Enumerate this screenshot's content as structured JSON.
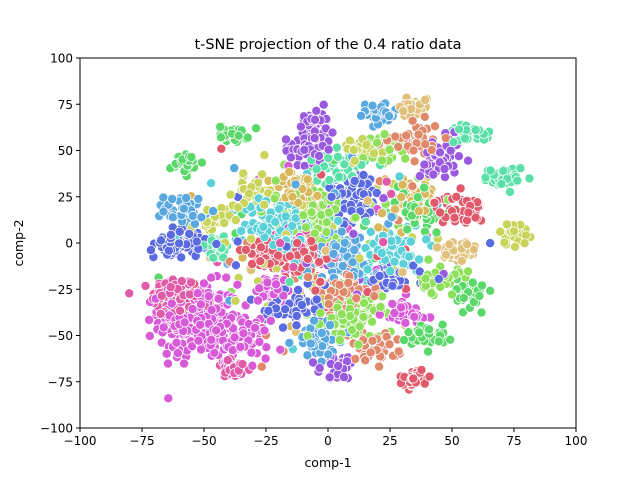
{
  "chart_data": {
    "type": "scatter",
    "title": "t-SNE projection of the 0.4 ratio data",
    "xlabel": "comp-1",
    "ylabel": "comp-2",
    "xlim": [
      -100,
      100
    ],
    "ylim": [
      -100,
      100
    ],
    "xticks": [
      -100,
      -75,
      -50,
      -25,
      0,
      25,
      50,
      75,
      100
    ],
    "yticks": [
      -100,
      -75,
      -50,
      -25,
      0,
      25,
      50,
      75,
      100
    ],
    "grid": false,
    "legend": "none",
    "marker_edge_color": "#ffffff",
    "marker_outline_color": "#1f77b4",
    "palette": [
      "#e05a6c",
      "#e0886a",
      "#d8b85a",
      "#c8d45a",
      "#8ee05a",
      "#5ad86a",
      "#5ae0a8",
      "#5ad0d8",
      "#5aa8e0",
      "#5a6ae0",
      "#9a5ae0",
      "#d85ad8",
      "#e05aa8",
      "#e0c07a"
    ],
    "clusters": [
      {
        "cx": -62,
        "cy": -30,
        "sx": 4.5,
        "sy": 6,
        "n": 110,
        "c": 12
      },
      {
        "cx": -52,
        "cy": -42,
        "sx": 8,
        "sy": 10,
        "n": 260,
        "c": 11
      },
      {
        "cx": -36,
        "cy": -52,
        "sx": 6,
        "sy": 5,
        "n": 80,
        "c": 11
      },
      {
        "cx": -38,
        "cy": -68,
        "sx": 3.5,
        "sy": 2.5,
        "n": 35,
        "c": 12
      },
      {
        "cx": -57,
        "cy": 43,
        "sx": 3.2,
        "sy": 2.5,
        "n": 35,
        "c": 5
      },
      {
        "cx": -38,
        "cy": 59,
        "sx": 3,
        "sy": 2.3,
        "n": 30,
        "c": 5
      },
      {
        "cx": -60,
        "cy": 0,
        "sx": 5,
        "sy": 4,
        "n": 70,
        "c": 9
      },
      {
        "cx": -58,
        "cy": 18,
        "sx": 4,
        "sy": 4,
        "n": 45,
        "c": 8
      },
      {
        "cx": -47,
        "cy": 12,
        "sx": 4,
        "sy": 4,
        "n": 40,
        "c": 3
      },
      {
        "cx": -45,
        "cy": -3,
        "sx": 4,
        "sy": 3,
        "n": 35,
        "c": 6
      },
      {
        "cx": -30,
        "cy": 28,
        "sx": 4,
        "sy": 4,
        "n": 45,
        "c": 3
      },
      {
        "cx": -20,
        "cy": 10,
        "sx": 7,
        "sy": 8,
        "n": 120,
        "c": 7
      },
      {
        "cx": -5,
        "cy": 15,
        "sx": 7,
        "sy": 8,
        "n": 110,
        "c": 4
      },
      {
        "cx": -12,
        "cy": 28,
        "sx": 6,
        "sy": 5,
        "n": 70,
        "c": 2
      },
      {
        "cx": 10,
        "cy": 25,
        "sx": 6,
        "sy": 7,
        "n": 90,
        "c": 9
      },
      {
        "cx": -8,
        "cy": 52,
        "sx": 5,
        "sy": 5,
        "n": 60,
        "c": 10
      },
      {
        "cx": 5,
        "cy": 40,
        "sx": 5,
        "sy": 5,
        "n": 50,
        "c": 6
      },
      {
        "cx": -5,
        "cy": 67,
        "sx": 3,
        "sy": 3,
        "n": 30,
        "c": 10
      },
      {
        "cx": 13,
        "cy": 49,
        "sx": 4,
        "sy": 3,
        "n": 35,
        "c": 3
      },
      {
        "cx": 22,
        "cy": 50,
        "sx": 4,
        "sy": 3.5,
        "n": 40,
        "c": 4
      },
      {
        "cx": 20,
        "cy": 70,
        "sx": 4,
        "sy": 3,
        "n": 40,
        "c": 8
      },
      {
        "cx": 35,
        "cy": 74,
        "sx": 3,
        "sy": 3,
        "n": 30,
        "c": 13
      },
      {
        "cx": 36,
        "cy": 55,
        "sx": 5,
        "sy": 5,
        "n": 55,
        "c": 1
      },
      {
        "cx": 45,
        "cy": 45,
        "sx": 4,
        "sy": 6,
        "n": 55,
        "c": 10
      },
      {
        "cx": 57,
        "cy": 60,
        "sx": 4,
        "sy": 2.5,
        "n": 40,
        "c": 6
      },
      {
        "cx": 71,
        "cy": 35,
        "sx": 4,
        "sy": 3,
        "n": 40,
        "c": 6
      },
      {
        "cx": 34,
        "cy": 25,
        "sx": 4,
        "sy": 4,
        "n": 45,
        "c": 2
      },
      {
        "cx": 35,
        "cy": 18,
        "sx": 6,
        "sy": 5,
        "n": 60,
        "c": 5
      },
      {
        "cx": 53,
        "cy": 18,
        "sx": 5,
        "sy": 4,
        "n": 45,
        "c": 0
      },
      {
        "cx": 75,
        "cy": 5,
        "sx": 3,
        "sy": 3,
        "n": 30,
        "c": 3
      },
      {
        "cx": 52,
        "cy": -5,
        "sx": 4,
        "sy": 4,
        "n": 40,
        "c": 13
      },
      {
        "cx": 58,
        "cy": -27,
        "sx": 3,
        "sy": 4,
        "n": 40,
        "c": 5
      },
      {
        "cx": 45,
        "cy": -20,
        "sx": 4,
        "sy": 4,
        "n": 40,
        "c": 4
      },
      {
        "cx": 40,
        "cy": -50,
        "sx": 4,
        "sy": 3,
        "n": 40,
        "c": 5
      },
      {
        "cx": 35,
        "cy": -73,
        "sx": 3,
        "sy": 2.5,
        "n": 30,
        "c": 0
      },
      {
        "cx": 25,
        "cy": -5,
        "sx": 6,
        "sy": 6,
        "n": 80,
        "c": 7
      },
      {
        "cx": 5,
        "cy": -5,
        "sx": 5,
        "sy": 6,
        "n": 70,
        "c": 8
      },
      {
        "cx": -10,
        "cy": -8,
        "sx": 6,
        "sy": 5,
        "n": 70,
        "c": 0
      },
      {
        "cx": -22,
        "cy": -25,
        "sx": 4,
        "sy": 4,
        "n": 40,
        "c": 11
      },
      {
        "cx": -15,
        "cy": -33,
        "sx": 5,
        "sy": 5,
        "n": 60,
        "c": 9
      },
      {
        "cx": 5,
        "cy": -28,
        "sx": 6,
        "sy": 6,
        "n": 80,
        "c": 1
      },
      {
        "cx": 10,
        "cy": -40,
        "sx": 6,
        "sy": 6,
        "n": 80,
        "c": 4
      },
      {
        "cx": -3,
        "cy": -52,
        "sx": 5,
        "sy": 5,
        "n": 60,
        "c": 8
      },
      {
        "cx": 18,
        "cy": -57,
        "sx": 5,
        "sy": 4,
        "n": 45,
        "c": 1
      },
      {
        "cx": 5,
        "cy": -67,
        "sx": 4,
        "sy": 3,
        "n": 35,
        "c": 10
      },
      {
        "cx": 30,
        "cy": -38,
        "sx": 5,
        "sy": 4,
        "n": 45,
        "c": 11
      },
      {
        "cx": 25,
        "cy": -18,
        "sx": 5,
        "sy": 5,
        "n": 50,
        "c": 9
      },
      {
        "cx": -25,
        "cy": -5,
        "sx": 5,
        "sy": 4,
        "n": 50,
        "c": 0
      },
      {
        "cx": 0,
        "cy": 0,
        "sx": 22,
        "sy": 22,
        "n": 260,
        "c": -1
      }
    ]
  }
}
